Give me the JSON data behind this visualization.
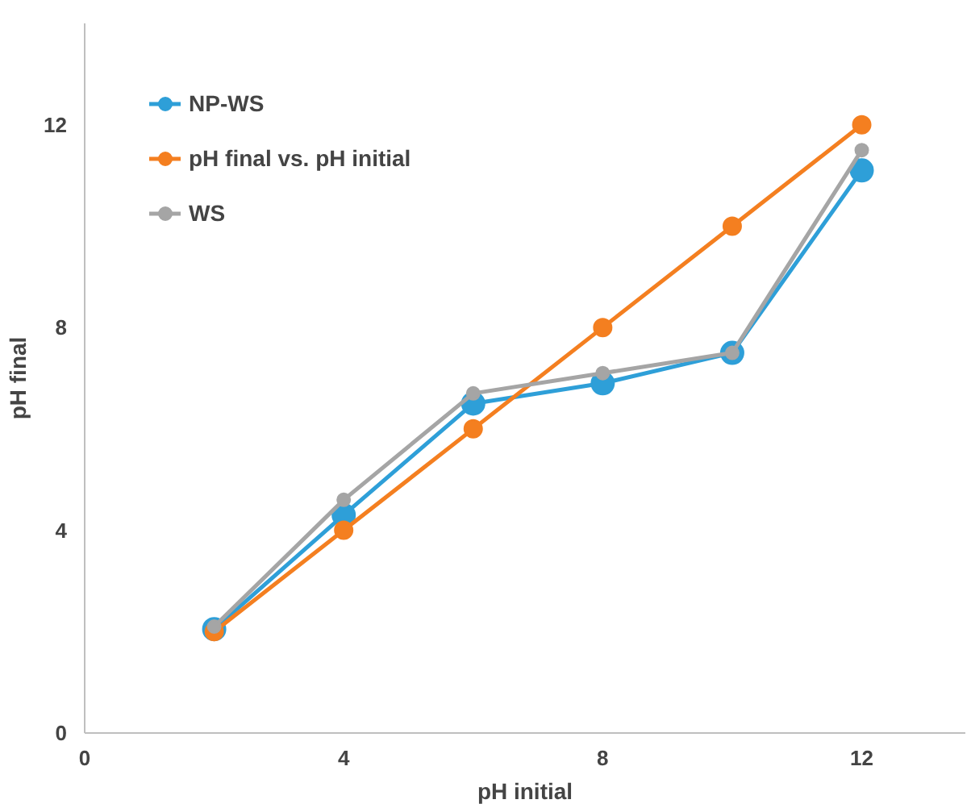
{
  "chart_data": {
    "type": "line",
    "xlabel": "pH initial",
    "ylabel": "pH final",
    "x": [
      2,
      4,
      6,
      8,
      10,
      12
    ],
    "series": [
      {
        "name": "NP-WS",
        "color": "#2e9fd8",
        "values": [
          2.05,
          4.3,
          6.5,
          6.9,
          7.5,
          11.1
        ]
      },
      {
        "name": "pH final vs. pH initial",
        "color": "#f47f20",
        "values": [
          2,
          4,
          6,
          8,
          10,
          12
        ]
      },
      {
        "name": "WS",
        "color": "#a5a5a5",
        "values": [
          2.1,
          4.6,
          6.7,
          7.1,
          7.5,
          11.5
        ]
      }
    ],
    "xlim": [
      0,
      13.6
    ],
    "ylim": [
      0,
      14
    ],
    "xticks": [
      0,
      4,
      8,
      12
    ],
    "yticks": [
      0,
      4,
      8,
      12
    ],
    "grid": false,
    "legend": "top left",
    "marker": "circle",
    "line_style": "solid"
  }
}
